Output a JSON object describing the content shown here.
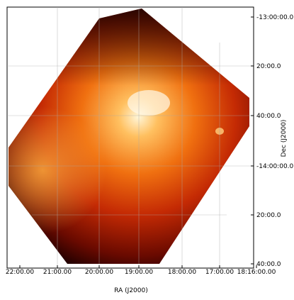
{
  "ra_axis": {
    "label": "RA (J2000)",
    "ticks": [
      "22:00.00",
      "21:00.00",
      "20:00.00",
      "19:00.00",
      "18:00.00",
      "17:00.00",
      "18:16:00.00"
    ]
  },
  "dec_axis": {
    "label": "Dec (J2000)",
    "ticks": [
      "-13:00:00.0",
      "20:00.0",
      "40:00.0",
      "-14:00:00.0",
      "20:00.0",
      "40:00.0"
    ]
  }
}
